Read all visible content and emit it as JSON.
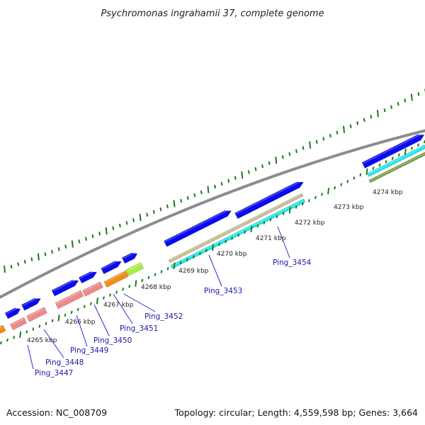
{
  "title": "Psychromonas ingrahamii 37, complete genome",
  "footer": {
    "accession": "Accession: NC_008709",
    "summary": "Topology: circular; Length: 4,559,598 bp; Genes: 3,664"
  },
  "colors": {
    "backbone": "#8c8c8c",
    "tick": "#1c7a1c",
    "cds": "#0a0af0",
    "gene_pink": "#f08a8a",
    "orange": "#f08c1a",
    "lime": "#a8f040",
    "cyan": "#18e8e8",
    "tan": "#c8b888",
    "olive": "#7a9a3a",
    "label": "#1a1aa8"
  },
  "scale_ticks": [
    {
      "label": "4265 kbp",
      "pos": 4265
    },
    {
      "label": "4266 kbp",
      "pos": 4266
    },
    {
      "label": "4267 kbp",
      "pos": 4267
    },
    {
      "label": "4268 kbp",
      "pos": 4268
    },
    {
      "label": "4269 kbp",
      "pos": 4269
    },
    {
      "label": "4270 kbp",
      "pos": 4270
    },
    {
      "label": "4271 kbp",
      "pos": 4271
    },
    {
      "label": "4272 kbp",
      "pos": 4272
    },
    {
      "label": "4273 kbp",
      "pos": 4273
    },
    {
      "label": "4274 kbp",
      "pos": 4274
    }
  ],
  "gene_labels": [
    {
      "label": "Ping_3447"
    },
    {
      "label": "Ping_3448"
    },
    {
      "label": "Ping_3449"
    },
    {
      "label": "Ping_3450"
    },
    {
      "label": "Ping_3451"
    },
    {
      "label": "Ping_3452"
    },
    {
      "label": "Ping_3453"
    },
    {
      "label": "Ping_3454"
    }
  ]
}
